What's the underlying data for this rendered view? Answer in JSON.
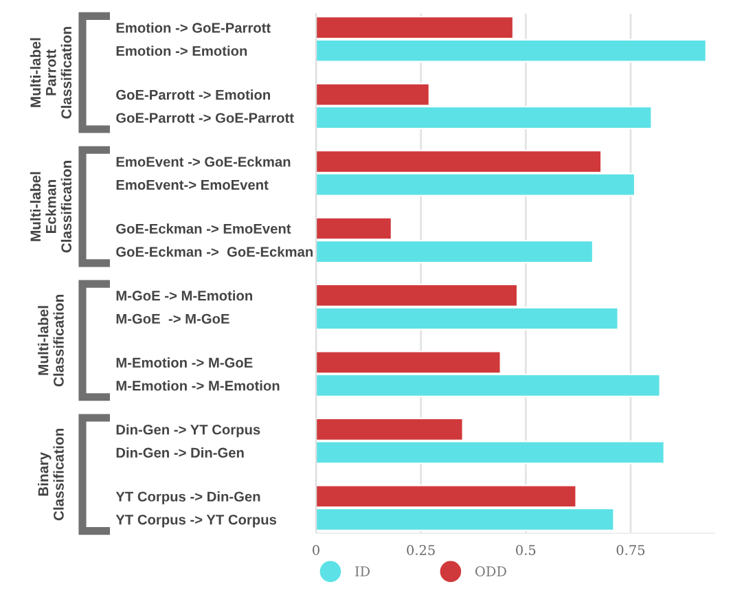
{
  "chart_data": {
    "type": "bar",
    "orientation": "horizontal",
    "categories": [
      "Emotion -> GoE-Parrott",
      "Emotion -> Emotion",
      "GoE-Parrott -> Emotion",
      "GoE-Parrott -> GoE-Parrott",
      "EmoEvent -> GoE-Eckman",
      "EmoEvent-> EmoEvent",
      "GoE-Eckman -> EmoEvent",
      "GoE-Eckman ->  GoE-Eckman",
      "M-GoE -> M-Emotion",
      "M-GoE  -> M-GoE",
      "M-Emotion -> M-GoE",
      "M-Emotion -> M-Emotion",
      "Din-Gen -> YT Corpus",
      "Din-Gen -> Din-Gen",
      "YT Corpus -> Din-Gen",
      "YT Corpus -> YT Corpus"
    ],
    "series": [
      {
        "name": "ID",
        "color": "#5ce1e6",
        "values": [
          null,
          0.93,
          null,
          0.8,
          null,
          0.76,
          null,
          0.66,
          null,
          0.72,
          null,
          0.82,
          null,
          0.83,
          null,
          0.71
        ]
      },
      {
        "name": "ODD",
        "color": "#d0393b",
        "values": [
          0.47,
          null,
          0.27,
          null,
          0.68,
          null,
          0.18,
          null,
          0.48,
          null,
          0.44,
          null,
          0.35,
          null,
          0.62,
          null
        ]
      }
    ],
    "annotations": [
      "Multi-label\nParrott\nClassification",
      "Multi-label\nEckman\nClassification",
      "Multi-label\nClassification",
      "Binary\nClassification"
    ],
    "xlim": [
      0,
      0.95
    ],
    "xticks": [
      0,
      0.25,
      0.5,
      0.75
    ],
    "grid": "x",
    "legend": "bottom left"
  }
}
